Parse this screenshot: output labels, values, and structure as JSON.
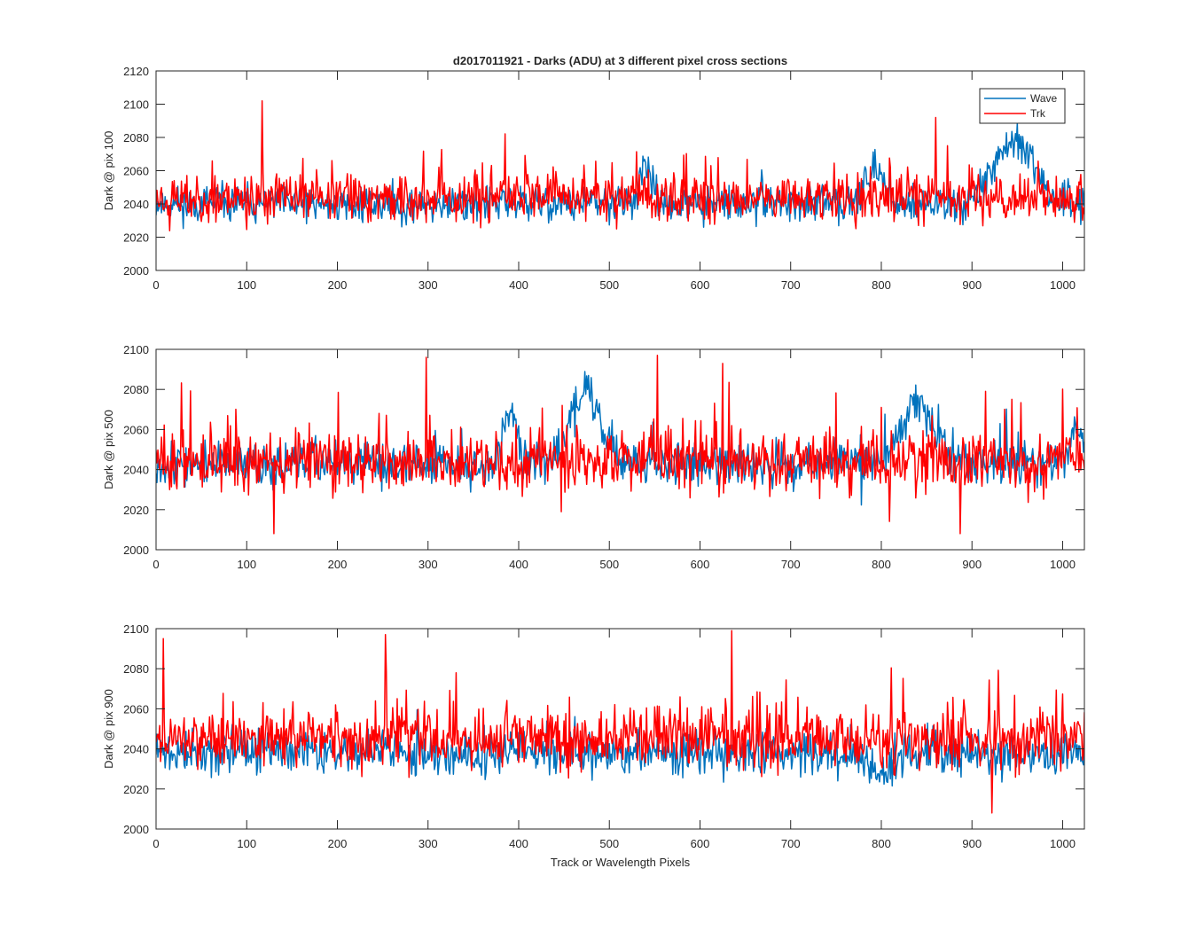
{
  "chart_data": [
    {
      "type": "line",
      "title": "d2017011921 - Darks (ADU) at 3 different pixel cross sections",
      "xlabel": "",
      "ylabel": "Dark @ pix 100",
      "xlim": [
        0,
        1024
      ],
      "ylim": [
        2000,
        2120
      ],
      "xticks": [
        0,
        100,
        200,
        300,
        400,
        500,
        600,
        700,
        800,
        900,
        1000
      ],
      "yticks": [
        2000,
        2020,
        2040,
        2060,
        2080,
        2100,
        2120
      ],
      "legend": "top-right",
      "series": [
        {
          "name": "Wave",
          "color": "#0072BD",
          "noise": {
            "mean": 2040,
            "amp": 9,
            "spike_prob": 0.015,
            "spike_amp": 14,
            "seed": 11,
            "bumps": [
              {
                "center": 540,
                "width": 10,
                "height": 20
              },
              {
                "center": 790,
                "width": 18,
                "height": 18
              },
              {
                "center": 945,
                "width": 30,
                "height": 38
              }
            ]
          }
        },
        {
          "name": "Trk",
          "color": "#FF0000",
          "noise": {
            "mean": 2044,
            "amp": 12,
            "spike_prob": 0.04,
            "spike_amp": 22,
            "seed": 23,
            "fixed": [
              {
                "x": 117,
                "y": 2102
              },
              {
                "x": 860,
                "y": 2092
              }
            ]
          }
        }
      ]
    },
    {
      "type": "line",
      "title": "",
      "xlabel": "",
      "ylabel": "Dark @ pix 500",
      "xlim": [
        0,
        1024
      ],
      "ylim": [
        2000,
        2100
      ],
      "xticks": [
        0,
        100,
        200,
        300,
        400,
        500,
        600,
        700,
        800,
        900,
        1000
      ],
      "yticks": [
        2000,
        2020,
        2040,
        2060,
        2080,
        2100
      ],
      "series": [
        {
          "name": "Wave",
          "color": "#0072BD",
          "noise": {
            "mean": 2043,
            "amp": 9,
            "spike_prob": 0.02,
            "spike_amp": 14,
            "seed": 37,
            "bumps": [
              {
                "center": 390,
                "width": 10,
                "height": 25
              },
              {
                "center": 475,
                "width": 22,
                "height": 38
              },
              {
                "center": 840,
                "width": 25,
                "height": 30
              },
              {
                "center": 1015,
                "width": 12,
                "height": 18
              }
            ]
          }
        },
        {
          "name": "Trk",
          "color": "#FF0000",
          "noise": {
            "mean": 2044,
            "amp": 12,
            "spike_prob": 0.05,
            "spike_amp": 26,
            "seed": 51,
            "fixed": [
              {
                "x": 298,
                "y": 2096
              },
              {
                "x": 130,
                "y": 2008
              },
              {
                "x": 553,
                "y": 2097
              },
              {
                "x": 625,
                "y": 2093
              },
              {
                "x": 887,
                "y": 2008
              }
            ]
          }
        }
      ]
    },
    {
      "type": "line",
      "title": "",
      "xlabel": "Track or Wavelength Pixels",
      "ylabel": "Dark @ pix 900",
      "xlim": [
        0,
        1024
      ],
      "ylim": [
        2000,
        2100
      ],
      "xticks": [
        0,
        100,
        200,
        300,
        400,
        500,
        600,
        700,
        800,
        900,
        1000
      ],
      "yticks": [
        2000,
        2020,
        2040,
        2060,
        2080,
        2100
      ],
      "series": [
        {
          "name": "Wave",
          "color": "#0072BD",
          "noise": {
            "mean": 2038,
            "amp": 9,
            "spike_prob": 0.015,
            "spike_amp": 14,
            "seed": 71,
            "bumps": [
              {
                "center": 795,
                "width": 15,
                "height": -12
              }
            ]
          }
        },
        {
          "name": "Trk",
          "color": "#FF0000",
          "noise": {
            "mean": 2045,
            "amp": 12,
            "spike_prob": 0.05,
            "spike_amp": 24,
            "seed": 89,
            "fixed": [
              {
                "x": 253,
                "y": 2097
              },
              {
                "x": 635,
                "y": 2099
              },
              {
                "x": 8,
                "y": 2095
              },
              {
                "x": 922,
                "y": 2008
              }
            ]
          }
        }
      ]
    }
  ]
}
